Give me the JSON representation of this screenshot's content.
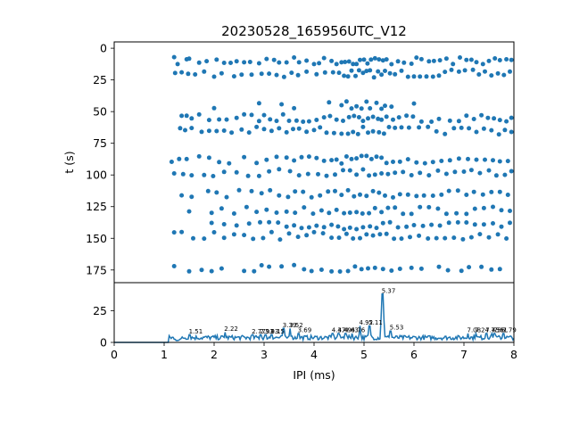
{
  "chart_data": [
    {
      "type": "scatter",
      "title": "20230528_165956UTC_V12",
      "xlabel": "",
      "ylabel": "t (s)",
      "xlim": [
        0,
        8
      ],
      "ylim": [
        185,
        -5
      ],
      "y_inverted": true,
      "yticks": [
        0,
        25,
        50,
        75,
        100,
        125,
        150,
        175
      ],
      "color": "#1f77b4",
      "rows": [
        {
          "t": 10,
          "x": [
            1.2,
            1.27,
            1.45,
            1.5,
            1.7,
            1.85,
            2.05,
            2.2,
            2.33,
            2.45,
            2.6,
            2.72,
            2.9,
            3.05,
            3.2,
            3.3,
            3.45,
            3.6,
            3.7,
            3.85,
            4.0,
            4.1,
            4.2,
            4.35,
            4.45,
            4.55,
            4.62,
            4.7,
            4.78,
            4.85,
            4.92,
            5.0,
            5.07,
            5.14,
            5.22,
            5.3,
            5.38,
            5.45,
            5.55,
            5.68,
            5.8,
            5.95,
            6.05,
            6.15,
            6.3,
            6.4,
            6.52,
            6.65,
            6.78,
            6.92,
            7.05,
            7.15,
            7.25,
            7.38,
            7.5,
            7.62,
            7.72,
            7.85,
            7.95
          ]
        },
        {
          "t": 20,
          "x": [
            1.22,
            1.35,
            1.48,
            1.62,
            1.8,
            2.0,
            2.15,
            2.4,
            2.55,
            2.75,
            2.95,
            3.1,
            3.25,
            3.4,
            3.55,
            3.68,
            3.85,
            4.05,
            4.22,
            4.38,
            4.5,
            4.6,
            4.68,
            4.75,
            4.83,
            4.9,
            4.98,
            5.05,
            5.12,
            5.2,
            5.28,
            5.35,
            5.42,
            5.52,
            5.62,
            5.75,
            5.88,
            6.0,
            6.12,
            6.25,
            6.38,
            6.5,
            6.62,
            6.75,
            6.9,
            7.02,
            7.18,
            7.3,
            7.42,
            7.55,
            7.68,
            7.8,
            7.92
          ]
        },
        {
          "t": 45,
          "x": [
            2.0,
            2.9,
            3.35,
            3.6,
            4.3,
            4.55,
            4.65,
            4.75,
            4.85,
            4.95,
            5.05,
            5.12,
            5.25,
            5.35,
            5.42,
            5.55,
            6.0
          ]
        },
        {
          "t": 55,
          "x": [
            1.35,
            1.45,
            1.55,
            1.7,
            1.9,
            2.1,
            2.25,
            2.45,
            2.6,
            2.75,
            2.9,
            3.0,
            3.12,
            3.25,
            3.38,
            3.5,
            3.65,
            3.78,
            3.9,
            4.05,
            4.2,
            4.32,
            4.45,
            4.58,
            4.7,
            4.8,
            4.9,
            4.98,
            5.08,
            5.18,
            5.28,
            5.35,
            5.45,
            5.58,
            5.7,
            5.85,
            5.98,
            6.15,
            6.35,
            6.5,
            6.72,
            6.9,
            7.05,
            7.2,
            7.35,
            7.48,
            7.6,
            7.72,
            7.85,
            7.95
          ]
        },
        {
          "t": 65,
          "x": [
            1.32,
            1.42,
            1.55,
            1.75,
            1.9,
            2.05,
            2.2,
            2.35,
            2.55,
            2.7,
            2.85,
            3.0,
            3.15,
            3.3,
            3.45,
            3.58,
            3.7,
            3.85,
            4.0,
            4.12,
            4.25,
            4.4,
            4.55,
            4.68,
            4.78,
            4.88,
            4.98,
            5.08,
            5.18,
            5.3,
            5.4,
            5.5,
            5.62,
            5.75,
            5.9,
            6.1,
            6.28,
            6.45,
            6.62,
            6.8,
            6.95,
            7.1,
            7.25,
            7.4,
            7.55,
            7.7,
            7.82,
            7.95
          ]
        },
        {
          "t": 88,
          "x": [
            1.15,
            1.3,
            1.45,
            1.7,
            1.9,
            2.1,
            2.3,
            2.6,
            2.85,
            3.05,
            3.25,
            3.45,
            3.6,
            3.75,
            3.9,
            4.05,
            4.2,
            4.35,
            4.45,
            4.55,
            4.65,
            4.75,
            4.85,
            4.95,
            5.05,
            5.15,
            5.25,
            5.35,
            5.45,
            5.58,
            5.72,
            5.88,
            6.05,
            6.22,
            6.38,
            6.55,
            6.72,
            6.9,
            7.08,
            7.25,
            7.42,
            7.58,
            7.72,
            7.88
          ]
        },
        {
          "t": 98,
          "x": [
            1.2,
            1.38,
            1.55,
            1.8,
            1.98,
            2.2,
            2.45,
            2.68,
            2.9,
            3.1,
            3.3,
            3.52,
            3.7,
            3.88,
            4.08,
            4.25,
            4.42,
            4.58,
            4.72,
            4.85,
            4.98,
            5.1,
            5.22,
            5.35,
            5.48,
            5.62,
            5.78,
            5.95,
            6.12,
            6.3,
            6.48,
            6.65,
            6.82,
            7.0,
            7.15,
            7.32,
            7.5,
            7.65,
            7.82,
            7.95
          ]
        },
        {
          "t": 115,
          "x": [
            1.35,
            1.55,
            1.88,
            2.05,
            2.25,
            2.5,
            2.75,
            2.95,
            3.12,
            3.3,
            3.48,
            3.62,
            3.78,
            3.95,
            4.12,
            4.28,
            4.42,
            4.55,
            4.68,
            4.8,
            4.92,
            5.05,
            5.18,
            5.3,
            5.42,
            5.58,
            5.72,
            5.88,
            6.05,
            6.2,
            6.38,
            6.55,
            6.7,
            6.88,
            7.05,
            7.2,
            7.38,
            7.55,
            7.72,
            7.88
          ]
        },
        {
          "t": 128,
          "x": [
            1.5,
            1.95,
            2.15,
            2.4,
            2.65,
            2.85,
            3.05,
            3.25,
            3.45,
            3.62,
            3.8,
            3.98,
            4.15,
            4.3,
            4.45,
            4.6,
            4.72,
            4.85,
            4.97,
            5.1,
            5.22,
            5.35,
            5.48,
            5.62,
            5.78,
            5.95,
            6.12,
            6.3,
            6.48,
            6.65,
            6.85,
            7.05,
            7.22,
            7.4,
            7.58,
            7.75,
            7.92
          ]
        },
        {
          "t": 140,
          "x": [
            1.95,
            2.2,
            2.45,
            2.7,
            2.92,
            3.1,
            3.28,
            3.45,
            3.6,
            3.75,
            3.9,
            4.05,
            4.2,
            4.35,
            4.48,
            4.6,
            4.72,
            4.85,
            4.98,
            5.12,
            5.25,
            5.38,
            5.52,
            5.68,
            5.85,
            6.0,
            6.18,
            6.35,
            6.52,
            6.7,
            6.88,
            7.05,
            7.22,
            7.4,
            7.58,
            7.75,
            7.92
          ]
        },
        {
          "t": 148,
          "x": [
            1.2,
            1.35,
            1.58,
            1.8,
            2.0,
            2.2,
            2.4,
            2.6,
            2.78,
            2.98,
            3.15,
            3.32,
            3.5,
            3.68,
            3.85,
            4.0,
            4.18,
            4.35,
            4.5,
            4.65,
            4.78,
            4.92,
            5.05,
            5.18,
            5.32,
            5.45,
            5.6,
            5.75,
            5.92,
            6.1,
            6.28,
            6.45,
            6.62,
            6.8,
            6.98,
            7.15,
            7.32,
            7.5,
            7.68,
            7.85
          ]
        },
        {
          "t": 174,
          "x": [
            1.2,
            1.5,
            1.75,
            1.95,
            2.15,
            2.6,
            2.8,
            2.95,
            3.1,
            3.35,
            3.6,
            3.8,
            3.95,
            4.15,
            4.35,
            4.52,
            4.68,
            4.82,
            4.95,
            5.08,
            5.22,
            5.38,
            5.55,
            5.72,
            5.95,
            6.15,
            6.5,
            6.68,
            6.95,
            7.1,
            7.35,
            7.55,
            7.72
          ]
        }
      ]
    },
    {
      "type": "line",
      "xlabel": "IPI (ms)",
      "ylabel": "",
      "xlim": [
        0,
        8
      ],
      "ylim": [
        0,
        47
      ],
      "xticks": [
        0,
        1,
        2,
        3,
        4,
        5,
        6,
        7,
        8
      ],
      "yticks": [
        0,
        25
      ],
      "color": "#1f77b4",
      "baseline_end": 1.1,
      "noise_level": 5,
      "peaks": [
        {
          "x": 1.51,
          "y": 6,
          "label": "1.51"
        },
        {
          "x": 2.22,
          "y": 8,
          "label": "2.22"
        },
        {
          "x": 2.77,
          "y": 6,
          "label": "2.77"
        },
        {
          "x": 2.93,
          "y": 6,
          "label": "2.93"
        },
        {
          "x": 3.03,
          "y": 6,
          "label": "3.03"
        },
        {
          "x": 3.15,
          "y": 6,
          "label": "3.15"
        },
        {
          "x": 3.39,
          "y": 11,
          "label": "3.39"
        },
        {
          "x": 3.52,
          "y": 11,
          "label": "3.52"
        },
        {
          "x": 3.69,
          "y": 7,
          "label": "3.69"
        },
        {
          "x": 4.37,
          "y": 7,
          "label": "4.37"
        },
        {
          "x": 4.49,
          "y": 7,
          "label": "4.49"
        },
        {
          "x": 4.63,
          "y": 7,
          "label": "4.63"
        },
        {
          "x": 4.76,
          "y": 7,
          "label": "4.76"
        },
        {
          "x": 4.92,
          "y": 13,
          "label": "4.92"
        },
        {
          "x": 5.11,
          "y": 13,
          "label": "5.11"
        },
        {
          "x": 5.37,
          "y": 38,
          "label": "5.37"
        },
        {
          "x": 5.53,
          "y": 9,
          "label": "5.53"
        },
        {
          "x": 7.08,
          "y": 7,
          "label": "7.08"
        },
        {
          "x": 7.24,
          "y": 7,
          "label": "7.24"
        },
        {
          "x": 7.45,
          "y": 7,
          "label": "7.45"
        },
        {
          "x": 7.56,
          "y": 7,
          "label": "7.56"
        },
        {
          "x": 7.61,
          "y": 7,
          "label": "7.61"
        },
        {
          "x": 7.79,
          "y": 7,
          "label": "7.79"
        }
      ]
    }
  ]
}
